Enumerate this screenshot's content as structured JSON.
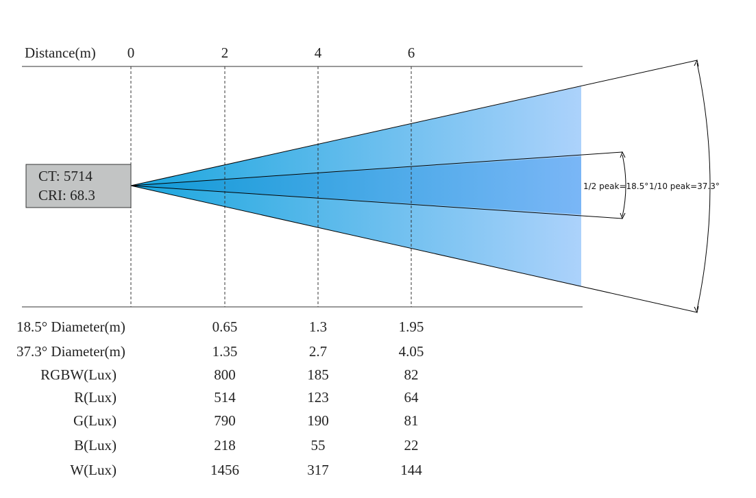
{
  "header": {
    "label": "Distance(m)",
    "ticks": [
      "0",
      "2",
      "4",
      "6"
    ]
  },
  "info": {
    "ct": "CT: 5714",
    "cri": "CRI: 68.3"
  },
  "annotations": {
    "half": "1/2 peak=18.5°",
    "tenth": "1/10 peak=37.3°"
  },
  "table": {
    "rows": [
      {
        "label": "18.5° Diameter(m)",
        "values": [
          "0.65",
          "1.3",
          "1.95"
        ]
      },
      {
        "label": "37.3° Diameter(m)",
        "values": [
          "1.35",
          "2.7",
          "4.05"
        ]
      },
      {
        "label": "RGBW(Lux)",
        "values": [
          "800",
          "185",
          "82"
        ]
      },
      {
        "label": "R(Lux)",
        "values": [
          "514",
          "123",
          "64"
        ]
      },
      {
        "label": "G(Lux)",
        "values": [
          "790",
          "190",
          "81"
        ]
      },
      {
        "label": "B(Lux)",
        "values": [
          "218",
          "55",
          "22"
        ]
      },
      {
        "label": "W(Lux)",
        "values": [
          "1456",
          "317",
          "144"
        ]
      }
    ]
  }
}
